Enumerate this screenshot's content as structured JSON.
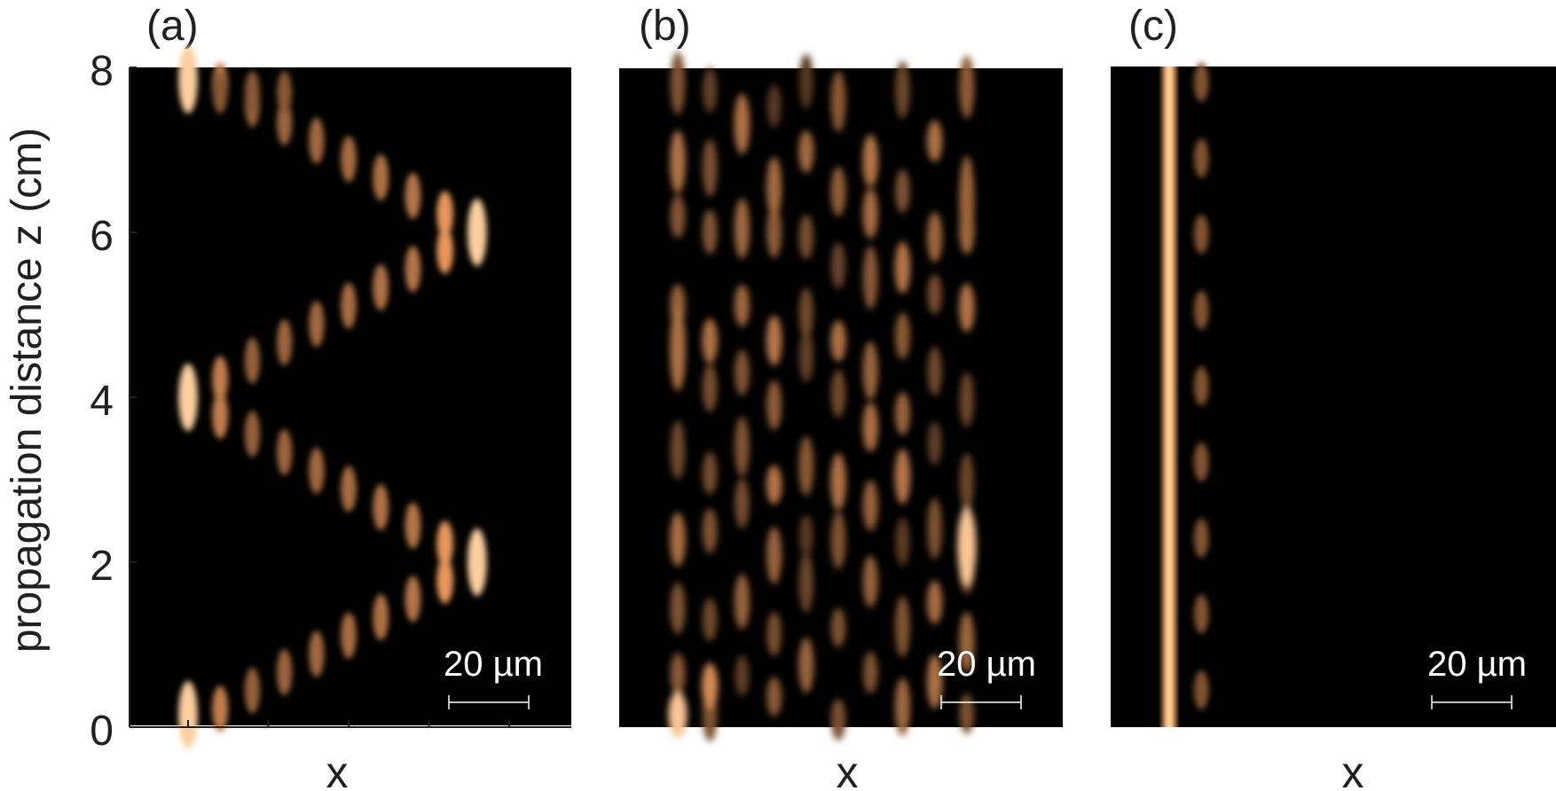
{
  "chart_data": [
    {
      "type": "heatmap",
      "panel_label": "(a)",
      "xlabel": "x",
      "ylabel": "propagation distance z (cm)",
      "ylim": [
        0,
        8
      ],
      "y_ticks": [
        "0",
        "2",
        "4",
        "6",
        "8"
      ],
      "scale_bar": "20 µm",
      "colormap": [
        "#000000",
        "#f4a868",
        "#ffd8a8"
      ],
      "pattern": "discrete diffraction revivals with bright spots at waveguide 1 (z=0, z=4) and waveguide 10 (z=2, z=6)",
      "num_waveguides": 10,
      "peaks": [
        {
          "waveguide": 1,
          "z": 0.2,
          "intensity": 0.9
        },
        {
          "waveguide": 1,
          "z": 4.1,
          "intensity": 1.0
        },
        {
          "waveguide": 1,
          "z": 7.8,
          "intensity": 0.85
        },
        {
          "waveguide": 10,
          "z": 2.1,
          "intensity": 1.0
        },
        {
          "waveguide": 10,
          "z": 6.2,
          "intensity": 0.95
        }
      ]
    },
    {
      "type": "heatmap",
      "panel_label": "(b)",
      "xlabel": "x",
      "ylim": [
        0,
        8
      ],
      "scale_bar": "20 µm",
      "colormap": [
        "#000000",
        "#f4a868",
        "#ffd8a8"
      ],
      "pattern": "irregular spreading of light across waveguides; bright spot at waveguide 10 near z=2",
      "num_waveguides": 10,
      "peaks": [
        {
          "waveguide": 1,
          "z": 0.1,
          "intensity": 0.9
        },
        {
          "waveguide": 10,
          "z": 2.2,
          "intensity": 0.9
        }
      ]
    },
    {
      "type": "heatmap",
      "panel_label": "(c)",
      "xlabel": "x",
      "ylim": [
        0,
        8
      ],
      "scale_bar": "20 µm",
      "colormap": [
        "#000000",
        "#f4a868",
        "#ffd8a8"
      ],
      "pattern": "light stays localized in waveguide 1 along the whole propagation; weak periodic leakage into waveguide 2",
      "num_waveguides": 10,
      "peaks": [
        {
          "waveguide": 1,
          "z": 4.0,
          "intensity": 1.0
        }
      ]
    }
  ]
}
